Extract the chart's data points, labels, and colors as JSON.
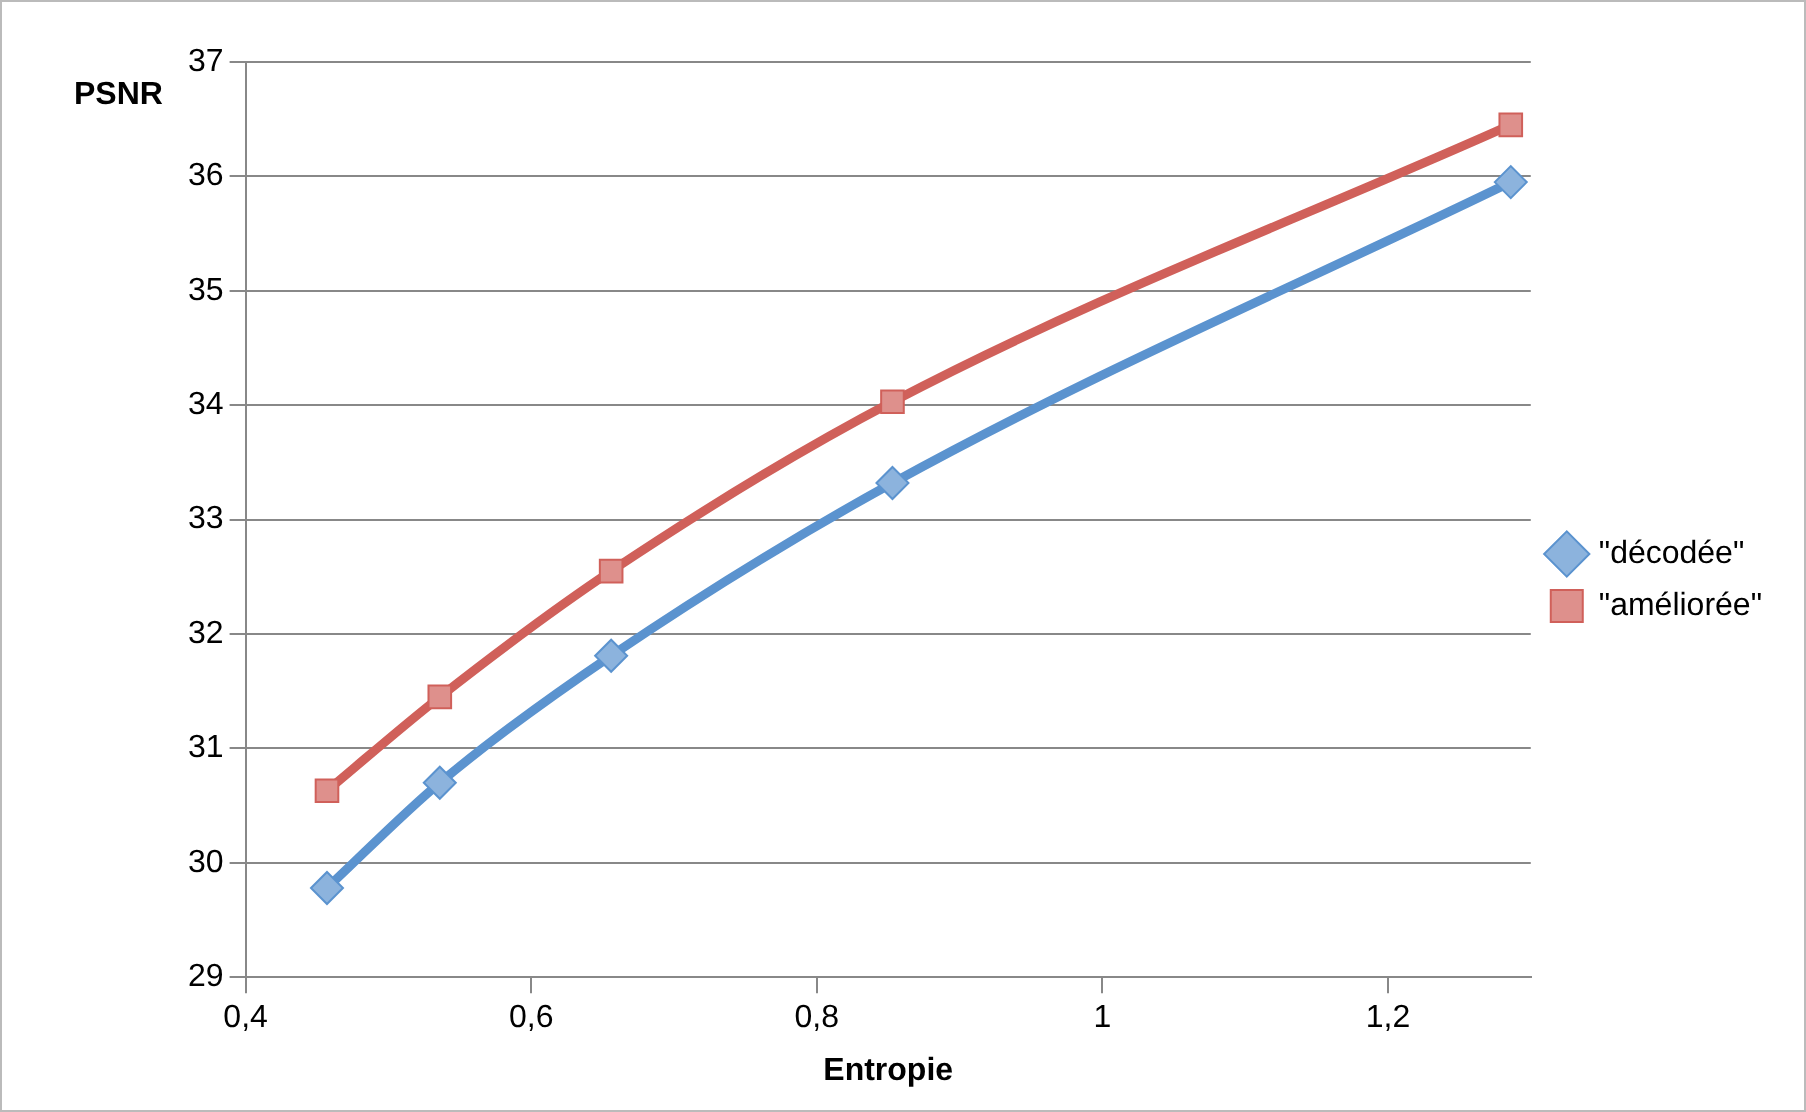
{
  "chart_data": {
    "type": "line",
    "ylabel": "PSNR",
    "xlabel": "Entropie",
    "x": [
      0.457,
      0.536,
      0.656,
      0.853,
      1.286
    ],
    "series": [
      {
        "name": "\"décodée\"",
        "color": "#5b93cf",
        "values": [
          29.78,
          30.7,
          31.81,
          33.32,
          35.95
        ],
        "marker": "diamond"
      },
      {
        "name": "\"améliorée\"",
        "color": "#d0605a",
        "values": [
          30.63,
          31.45,
          32.55,
          34.03,
          36.45
        ],
        "marker": "square"
      }
    ],
    "xlim": [
      0.4,
      1.3
    ],
    "xticks": [
      {
        "value": 0.4,
        "label": "0,4"
      },
      {
        "value": 0.6,
        "label": "0,6"
      },
      {
        "value": 0.8,
        "label": "0,8"
      },
      {
        "value": 1,
        "label": "1"
      },
      {
        "value": 1.2,
        "label": "1,2"
      }
    ],
    "ylim": [
      29,
      37
    ],
    "yticks": [
      29,
      30,
      31,
      32,
      33,
      34,
      35,
      36,
      37
    ],
    "grid": "y",
    "legend": "right"
  }
}
